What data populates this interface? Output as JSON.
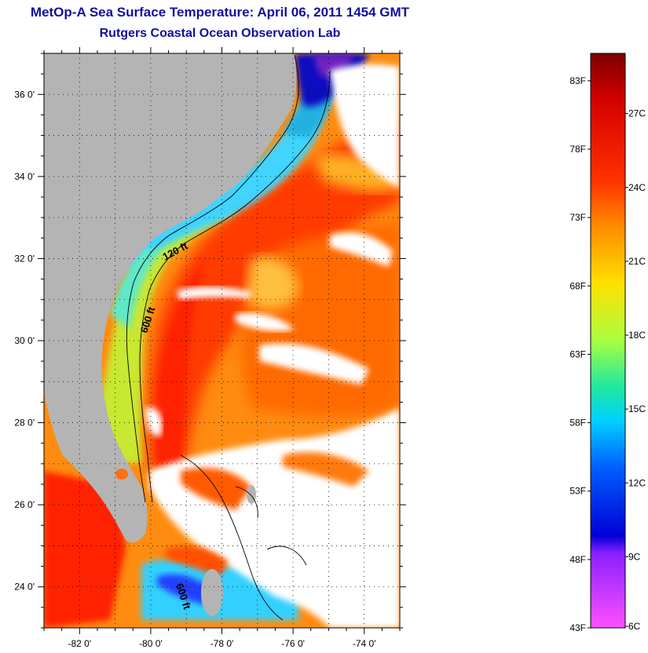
{
  "header": {
    "title": "MetOp-A Sea Surface Temperature:  April 06, 2011 1454 GMT",
    "subtitle": "Rutgers Coastal Ocean Observation Lab"
  },
  "map": {
    "lon_range": [
      -83,
      -73
    ],
    "lat_range": [
      23,
      37
    ],
    "lon_ticks": [
      {
        "value": -82,
        "label": "-82 0'"
      },
      {
        "value": -80,
        "label": "-80 0'"
      },
      {
        "value": -78,
        "label": "-78 0'"
      },
      {
        "value": -76,
        "label": "-76 0'"
      },
      {
        "value": -74,
        "label": "-74 0'"
      }
    ],
    "lat_ticks": [
      {
        "value": 24,
        "label": "24 0'"
      },
      {
        "value": 26,
        "label": "26 0'"
      },
      {
        "value": 28,
        "label": "28 0'"
      },
      {
        "value": 30,
        "label": "30 0'"
      },
      {
        "value": 32,
        "label": "32 0'"
      },
      {
        "value": 34,
        "label": "34 0'"
      },
      {
        "value": 36,
        "label": "36 0'"
      }
    ],
    "contour_labels": [
      "120 ft",
      "600 ft",
      "600 ft"
    ],
    "colors": {
      "land": "#b4b4b4",
      "cloud": "#ffffff",
      "gulf_stream": "#ff3a00",
      "shelf": "#3fd4ff"
    }
  },
  "colorbar": {
    "fahrenheit_labels": [
      "83F",
      "78F",
      "73F",
      "68F",
      "63F",
      "58F",
      "53F",
      "48F",
      "43F"
    ],
    "celsius_labels": [
      "27C",
      "24C",
      "21C",
      "18C",
      "15C",
      "12C",
      "9C",
      "6C"
    ],
    "stops": [
      "#7a0000",
      "#d40000",
      "#ff3000",
      "#ff8a00",
      "#ffe000",
      "#a8ff40",
      "#20e8a0",
      "#00d0ff",
      "#0060ff",
      "#0000d8",
      "#8a20ff",
      "#ff50ff"
    ]
  }
}
